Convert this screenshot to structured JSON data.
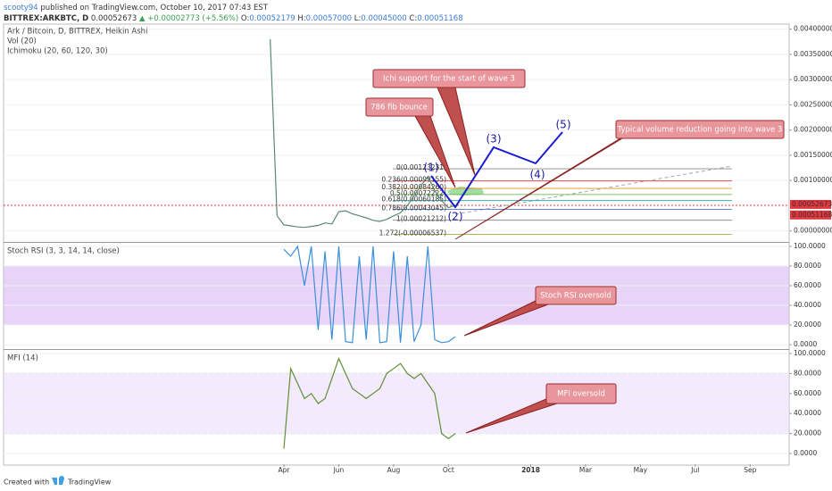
{
  "header": {
    "user": "scooty94",
    "published": "published on TradingView.com, October 10, 2017 07:43 EST",
    "symbol": "BITTREX:ARKBTC, D",
    "last": "0.00052673",
    "change": "▲ +0.00002773 (+5.56%)",
    "o_label": "O:",
    "o": "0.00052179",
    "h_label": "H:",
    "h": "0.00057000",
    "l_label": "L:",
    "l": "0.00045000",
    "c_label": "C:",
    "c": "0.00051168"
  },
  "annotations": [
    "Ichi support for the start of wave 3",
    "786 fib bounce",
    "Typical volume reduction going into wave 3",
    "Stoch RSI oversold",
    "MFI oversold"
  ],
  "waves": [
    "(1)",
    "(2)",
    "(3)",
    "(4)",
    "(5)"
  ],
  "footer": {
    "created": "Created with",
    "brand": "TradingView"
  },
  "chart_data": [
    {
      "type": "line",
      "title": "Ark / Bitcoin, D, BITTREX, Heikin Ashi",
      "legend_lines": [
        "Vol (20)",
        "Ichimoku (20, 60, 120, 30)"
      ],
      "ylim": [
        -0.0002,
        0.0041
      ],
      "yticks": [
        {
          "value": 0,
          "label": "0.00000000"
        },
        {
          "value": 0.001,
          "label": "0.00100000"
        },
        {
          "value": 0.0015,
          "label": "0.00150000"
        },
        {
          "value": 0.002,
          "label": "0.00200000"
        },
        {
          "value": 0.0025,
          "label": "0.00250000"
        },
        {
          "value": 0.003,
          "label": "0.00300000"
        },
        {
          "value": 0.0035,
          "label": "0.00350000"
        },
        {
          "value": 0.004,
          "label": "0.00400000"
        }
      ],
      "grid": true,
      "series": [
        {
          "color": "#5a8a70",
          "values": [
            null,
            null,
            0.0038,
            0.0003,
            0.00012,
            0.0001,
            8e-05,
            7e-05,
            9e-05,
            0.00011,
            0.00016,
            0.00014,
            0.00038,
            0.0004,
            0.00034,
            0.0003,
            0.00026,
            0.00021,
            0.00019,
            0.00023,
            0.0003,
            0.00036,
            0.0005,
            0.0007,
            0.0009,
            0.00108,
            0.0008,
            0.0006,
            0.00046,
            0.00051,
            null,
            null,
            null,
            null,
            null,
            null,
            null,
            null,
            null,
            null,
            null,
            null,
            null,
            null,
            null,
            null,
            null,
            null,
            null,
            null,
            null,
            null,
            null,
            null,
            null,
            null,
            null,
            null,
            null,
            null,
            null,
            null,
            null,
            null,
            null,
            null,
            null,
            null,
            null,
            null,
            null,
            null,
            null
          ]
        }
      ],
      "fib_levels": [
        {
          "label": "0(0.00123231)",
          "value": 0.00123231,
          "color": "#888888"
        },
        {
          "label": "0.236(0.00099155)",
          "value": 0.00099155,
          "color": "#e03030"
        },
        {
          "label": "0.382(0.00084260)",
          "value": 0.0008426,
          "color": "#e09020"
        },
        {
          "label": "0.5(0.00072222)",
          "value": 0.00072222,
          "color": "#50b030"
        },
        {
          "label": "0.618(0.00060185)",
          "value": 0.00060185,
          "color": "#20a0a0"
        },
        {
          "label": "0.786(0.00043045)",
          "value": 0.00043045,
          "color": "#3060c0"
        },
        {
          "label": "1(0.00021212)",
          "value": 0.00021212,
          "color": "#808080"
        },
        {
          "label": "1.272(-0.00006537)",
          "value": -6.537e-05,
          "color": "#90a020"
        }
      ],
      "price_labels": [
        {
          "value": 0.00052673,
          "label": "0.00052673",
          "color": "#e0383e"
        },
        {
          "value": 0.00051168,
          "label": "0.00051168",
          "color": "#e0383e"
        }
      ]
    },
    {
      "type": "line",
      "title": "Stoch RSI (3, 3, 14, 14, close)",
      "ylim": [
        -3.6,
        102.7
      ],
      "yticks": [
        {
          "value": 0,
          "label": "0.0000"
        },
        {
          "value": 20,
          "label": "20.0000"
        },
        {
          "value": 40,
          "label": "40.0000"
        },
        {
          "value": 60,
          "label": "60.0000"
        },
        {
          "value": 80,
          "label": "80.0000"
        },
        {
          "value": 100,
          "label": "100.0000"
        }
      ],
      "grid": true,
      "band": [
        20,
        80
      ],
      "band_color": "#d9b8f5",
      "series": [
        {
          "color": "#3b8fd8",
          "values": [
            null,
            null,
            null,
            null,
            97,
            90,
            100,
            60,
            100,
            15,
            95,
            5,
            100,
            3,
            2,
            90,
            5,
            100,
            2,
            3,
            95,
            2,
            90,
            3,
            20,
            100,
            5,
            2,
            3,
            8,
            null,
            null,
            null,
            null,
            null,
            null,
            null,
            null,
            null,
            null,
            null,
            null,
            null,
            null,
            null,
            null,
            null,
            null,
            null,
            null,
            null,
            null,
            null,
            null,
            null,
            null,
            null,
            null,
            null,
            null,
            null,
            null,
            null,
            null,
            null,
            null,
            null,
            null,
            null,
            null,
            null,
            null,
            null
          ]
        }
      ]
    },
    {
      "type": "line",
      "title": "MFI (14)",
      "ylim": [
        -10.7,
        102.7
      ],
      "yticks": [
        {
          "value": 0,
          "label": "0.0000"
        },
        {
          "value": 20,
          "label": "20.0000"
        },
        {
          "value": 40,
          "label": "40.0000"
        },
        {
          "value": 60,
          "label": "60.0000"
        },
        {
          "value": 80,
          "label": "80.0000"
        },
        {
          "value": 100,
          "label": "100.0000"
        }
      ],
      "grid": true,
      "band": [
        20,
        80
      ],
      "band_color": "#ecdcfb",
      "categories": [
        null,
        null,
        null,
        null,
        "Apr",
        null,
        null,
        null,
        null,
        null,
        null,
        null,
        "Jun",
        null,
        null,
        null,
        null,
        null,
        null,
        null,
        "Aug",
        null,
        null,
        null,
        null,
        null,
        null,
        null,
        "Oct",
        null,
        null,
        null,
        null,
        null,
        null,
        null,
        null,
        null,
        null,
        null,
        "2018",
        null,
        null,
        null,
        null,
        null,
        null,
        null,
        "Mar",
        null,
        null,
        null,
        null,
        null,
        null,
        null,
        "May",
        null,
        null,
        null,
        null,
        null,
        null,
        null,
        "Jul",
        null,
        null,
        null,
        null,
        null,
        null,
        null,
        "Sep"
      ],
      "series": [
        {
          "color": "#5e8f3a",
          "values": [
            null,
            null,
            null,
            null,
            5,
            85,
            70,
            55,
            60,
            50,
            55,
            75,
            95,
            80,
            65,
            60,
            55,
            60,
            65,
            80,
            85,
            90,
            80,
            75,
            80,
            70,
            60,
            20,
            15,
            20,
            null,
            null,
            null,
            null,
            null,
            null,
            null,
            null,
            null,
            null,
            null,
            null,
            null,
            null,
            null,
            null,
            null,
            null,
            null,
            null,
            null,
            null,
            null,
            null,
            null,
            null,
            null,
            null,
            null,
            null,
            null,
            null,
            null,
            null,
            null,
            null,
            null,
            null,
            null,
            null,
            null,
            null,
            null
          ]
        }
      ]
    }
  ]
}
